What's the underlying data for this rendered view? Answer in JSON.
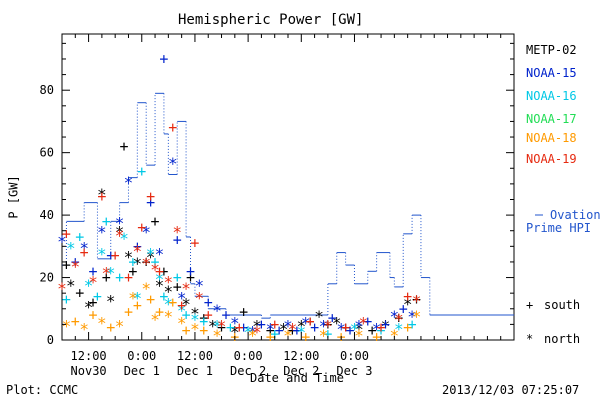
{
  "chart_data": {
    "type": "scatter",
    "title": "Hemispheric Power [GW]",
    "ylabel": "P [GW]",
    "xlabel": "Date and Time",
    "ylim": [
      0,
      98
    ],
    "xlim_hours": [
      -18,
      84
    ],
    "yticks": [
      "0",
      "20",
      "40",
      "60",
      "80"
    ],
    "xticks": [
      {
        "h": -12,
        "top": "12:00",
        "bottom": "Nov30"
      },
      {
        "h": 0,
        "top": "0:00",
        "bottom": "Dec 1"
      },
      {
        "h": 12,
        "top": "12:00",
        "bottom": "Dec 1"
      },
      {
        "h": 24,
        "top": "0:00",
        "bottom": "Dec 2"
      },
      {
        "h": 36,
        "top": "12:00",
        "bottom": "Dec 2"
      },
      {
        "h": 48,
        "top": "0:00",
        "bottom": "Dec 3"
      }
    ],
    "legend": [
      {
        "name": "METP-02",
        "color": "#000000"
      },
      {
        "name": "NOAA-15",
        "color": "#0022cc"
      },
      {
        "name": "NOAA-16",
        "color": "#00c8e6"
      },
      {
        "name": "NOAA-17",
        "color": "#22dd55"
      },
      {
        "name": "NOAA-18",
        "color": "#ff9a00"
      },
      {
        "name": "NOAA-19",
        "color": "#e62a10"
      }
    ],
    "ovation": {
      "label_line1": "Ovation",
      "label_line2": "Prime HPI",
      "color": "#2255cc",
      "steps": [
        [
          -18,
          24
        ],
        [
          -17,
          38
        ],
        [
          -13,
          44
        ],
        [
          -10,
          26
        ],
        [
          -7,
          38
        ],
        [
          -5,
          44
        ],
        [
          -3,
          52
        ],
        [
          -1,
          76
        ],
        [
          1,
          56
        ],
        [
          3,
          79
        ],
        [
          5,
          66
        ],
        [
          6,
          53
        ],
        [
          8,
          70
        ],
        [
          10,
          33
        ],
        [
          11,
          18
        ],
        [
          12,
          14
        ],
        [
          15,
          10
        ],
        [
          19,
          8
        ],
        [
          27,
          7
        ],
        [
          29,
          8
        ],
        [
          42,
          18
        ],
        [
          44,
          28
        ],
        [
          46,
          24
        ],
        [
          48,
          18
        ],
        [
          51,
          22
        ],
        [
          53,
          28
        ],
        [
          56,
          20
        ],
        [
          57,
          17
        ],
        [
          59,
          34
        ],
        [
          61,
          40
        ],
        [
          63,
          20
        ],
        [
          65,
          8
        ],
        [
          84,
          8
        ]
      ]
    },
    "hemisphere_markers": [
      {
        "symbol": "+",
        "label": "south"
      },
      {
        "symbol": "*",
        "label": "north"
      }
    ],
    "series": [
      {
        "name": "METP-02",
        "points": [
          [
            -17,
            24,
            "+"
          ],
          [
            -16,
            18,
            "*"
          ],
          [
            -14,
            15,
            "+"
          ],
          [
            -12,
            11,
            "*"
          ],
          [
            -11,
            12,
            "+"
          ],
          [
            -9,
            47,
            "*"
          ],
          [
            -8,
            20,
            "+"
          ],
          [
            -7,
            13,
            "*"
          ],
          [
            -5,
            35,
            "*"
          ],
          [
            -4,
            62,
            "+"
          ],
          [
            -3,
            27,
            "*"
          ],
          [
            -2,
            22,
            "+"
          ],
          [
            -1,
            25,
            "*"
          ],
          [
            1,
            25,
            "+"
          ],
          [
            2,
            27,
            "*"
          ],
          [
            3,
            38,
            "+"
          ],
          [
            4,
            18,
            "*"
          ],
          [
            5,
            22,
            "+"
          ],
          [
            6,
            16,
            "*"
          ],
          [
            8,
            17,
            "+"
          ],
          [
            10,
            12,
            "*"
          ],
          [
            11,
            20,
            "+"
          ],
          [
            12,
            9,
            "*"
          ],
          [
            14,
            7,
            "+"
          ],
          [
            16,
            5,
            "*"
          ],
          [
            18,
            4,
            "+"
          ],
          [
            21,
            3,
            "*"
          ],
          [
            23,
            9,
            "+"
          ],
          [
            26,
            5,
            "*"
          ],
          [
            29,
            3,
            "+"
          ],
          [
            32,
            4,
            "*"
          ],
          [
            34,
            3,
            "+"
          ],
          [
            36,
            5,
            "*"
          ],
          [
            38,
            6,
            "+"
          ],
          [
            40,
            8,
            "*"
          ],
          [
            42,
            5,
            "+"
          ],
          [
            44,
            6,
            "*"
          ],
          [
            46,
            4,
            "+"
          ],
          [
            49,
            4,
            "*"
          ],
          [
            52,
            3,
            "+"
          ],
          [
            55,
            5,
            "*"
          ],
          [
            58,
            7,
            "+"
          ],
          [
            60,
            12,
            "*"
          ],
          [
            62,
            13,
            "+"
          ]
        ]
      },
      {
        "name": "NOAA-15",
        "points": [
          [
            -18,
            32,
            "*"
          ],
          [
            -15,
            25,
            "+"
          ],
          [
            -13,
            30,
            "*"
          ],
          [
            -11,
            22,
            "+"
          ],
          [
            -9,
            35,
            "*"
          ],
          [
            -7,
            27,
            "+"
          ],
          [
            -5,
            38,
            "*"
          ],
          [
            -3,
            51,
            "*"
          ],
          [
            -1,
            30,
            "+"
          ],
          [
            1,
            35,
            "*"
          ],
          [
            2,
            44,
            "+"
          ],
          [
            4,
            28,
            "*"
          ],
          [
            5,
            90,
            "+"
          ],
          [
            7,
            57,
            "*"
          ],
          [
            8,
            32,
            "+"
          ],
          [
            9,
            14,
            "*"
          ],
          [
            11,
            22,
            "+"
          ],
          [
            13,
            18,
            "*"
          ],
          [
            15,
            12,
            "+"
          ],
          [
            17,
            10,
            "*"
          ],
          [
            19,
            8,
            "+"
          ],
          [
            21,
            6,
            "*"
          ],
          [
            23,
            4,
            "+"
          ],
          [
            25,
            3,
            "*"
          ],
          [
            27,
            5,
            "+"
          ],
          [
            29,
            4,
            "*"
          ],
          [
            31,
            3,
            "+"
          ],
          [
            33,
            5,
            "*"
          ],
          [
            35,
            3,
            "+"
          ],
          [
            37,
            6,
            "*"
          ],
          [
            39,
            4,
            "+"
          ],
          [
            41,
            5,
            "*"
          ],
          [
            43,
            7,
            "+"
          ],
          [
            45,
            4,
            "*"
          ],
          [
            47,
            3,
            "+"
          ],
          [
            49,
            5,
            "*"
          ],
          [
            51,
            6,
            "+"
          ],
          [
            53,
            4,
            "*"
          ],
          [
            55,
            5,
            "+"
          ],
          [
            57,
            8,
            "*"
          ],
          [
            59,
            10,
            "+"
          ],
          [
            61,
            8,
            "*"
          ]
        ]
      },
      {
        "name": "NOAA-16",
        "points": [
          [
            -17,
            13,
            "+"
          ],
          [
            -16,
            30,
            "*"
          ],
          [
            -14,
            33,
            "+"
          ],
          [
            -12,
            18,
            "*"
          ],
          [
            -10,
            14,
            "+"
          ],
          [
            -9,
            28,
            "*"
          ],
          [
            -8,
            38,
            "+"
          ],
          [
            -7,
            22,
            "*"
          ],
          [
            -5,
            20,
            "+"
          ],
          [
            -4,
            33,
            "*"
          ],
          [
            -2,
            25,
            "+"
          ],
          [
            -1,
            14,
            "*"
          ],
          [
            0,
            54,
            "+"
          ],
          [
            2,
            28,
            "*"
          ],
          [
            3,
            25,
            "+"
          ],
          [
            4,
            20,
            "*"
          ],
          [
            5,
            14,
            "+"
          ],
          [
            6,
            12,
            "*"
          ],
          [
            8,
            20,
            "+"
          ],
          [
            9,
            10,
            "*"
          ],
          [
            10,
            8,
            "+"
          ],
          [
            12,
            7,
            "*"
          ],
          [
            14,
            6,
            "+"
          ],
          [
            17,
            5,
            "*"
          ],
          [
            20,
            4,
            "+"
          ],
          [
            24,
            3,
            "*"
          ],
          [
            30,
            2,
            "+"
          ],
          [
            36,
            3,
            "*"
          ],
          [
            42,
            2,
            "+"
          ],
          [
            48,
            4,
            "*"
          ],
          [
            54,
            3,
            "+"
          ],
          [
            58,
            4,
            "*"
          ],
          [
            61,
            5,
            "+"
          ]
        ]
      },
      {
        "name": "NOAA-18",
        "points": [
          [
            -17,
            5,
            "*"
          ],
          [
            -15,
            6,
            "+"
          ],
          [
            -13,
            4,
            "*"
          ],
          [
            -11,
            8,
            "+"
          ],
          [
            -9,
            6,
            "*"
          ],
          [
            -7,
            4,
            "+"
          ],
          [
            -5,
            5,
            "*"
          ],
          [
            -3,
            9,
            "+"
          ],
          [
            -2,
            14,
            "*"
          ],
          [
            -1,
            11,
            "+"
          ],
          [
            1,
            17,
            "*"
          ],
          [
            2,
            13,
            "+"
          ],
          [
            3,
            7,
            "*"
          ],
          [
            4,
            9,
            "+"
          ],
          [
            6,
            8,
            "*"
          ],
          [
            7,
            12,
            "+"
          ],
          [
            9,
            6,
            "*"
          ],
          [
            10,
            3,
            "+"
          ],
          [
            12,
            4,
            "*"
          ],
          [
            14,
            3,
            "+"
          ],
          [
            17,
            2,
            "*"
          ],
          [
            21,
            1,
            "+"
          ],
          [
            25,
            2,
            "*"
          ],
          [
            29,
            1,
            "+"
          ],
          [
            33,
            2,
            "*"
          ],
          [
            37,
            1,
            "+"
          ],
          [
            41,
            2,
            "*"
          ],
          [
            45,
            1,
            "+"
          ],
          [
            49,
            2,
            "*"
          ],
          [
            53,
            1,
            "+"
          ],
          [
            57,
            2,
            "*"
          ],
          [
            60,
            4,
            "+"
          ],
          [
            62,
            8,
            "*"
          ]
        ]
      },
      {
        "name": "NOAA-19",
        "points": [
          [
            -18,
            17,
            "*"
          ],
          [
            -17,
            34,
            "+"
          ],
          [
            -15,
            24,
            "*"
          ],
          [
            -13,
            28,
            "+"
          ],
          [
            -11,
            19,
            "*"
          ],
          [
            -9,
            46,
            "+"
          ],
          [
            -8,
            22,
            "*"
          ],
          [
            -6,
            27,
            "+"
          ],
          [
            -5,
            34,
            "*"
          ],
          [
            -3,
            20,
            "+"
          ],
          [
            -1,
            29,
            "*"
          ],
          [
            0,
            36,
            "+"
          ],
          [
            1,
            25,
            "*"
          ],
          [
            2,
            46,
            "+"
          ],
          [
            3,
            23,
            "*"
          ],
          [
            4,
            22,
            "+"
          ],
          [
            6,
            19,
            "*"
          ],
          [
            7,
            68,
            "+"
          ],
          [
            8,
            35,
            "*"
          ],
          [
            9,
            11,
            "+"
          ],
          [
            10,
            17,
            "*"
          ],
          [
            12,
            31,
            "+"
          ],
          [
            13,
            14,
            "*"
          ],
          [
            15,
            8,
            "+"
          ],
          [
            18,
            5,
            "*"
          ],
          [
            22,
            4,
            "+"
          ],
          [
            26,
            3,
            "*"
          ],
          [
            30,
            5,
            "+"
          ],
          [
            34,
            4,
            "*"
          ],
          [
            38,
            6,
            "+"
          ],
          [
            42,
            5,
            "*"
          ],
          [
            46,
            4,
            "+"
          ],
          [
            50,
            6,
            "*"
          ],
          [
            54,
            4,
            "+"
          ],
          [
            58,
            7,
            "*"
          ],
          [
            60,
            14,
            "+"
          ],
          [
            62,
            13,
            "*"
          ]
        ]
      }
    ]
  },
  "footer": {
    "left": "Plot: CCMC",
    "right": "2013/12/03 07:25:07"
  }
}
